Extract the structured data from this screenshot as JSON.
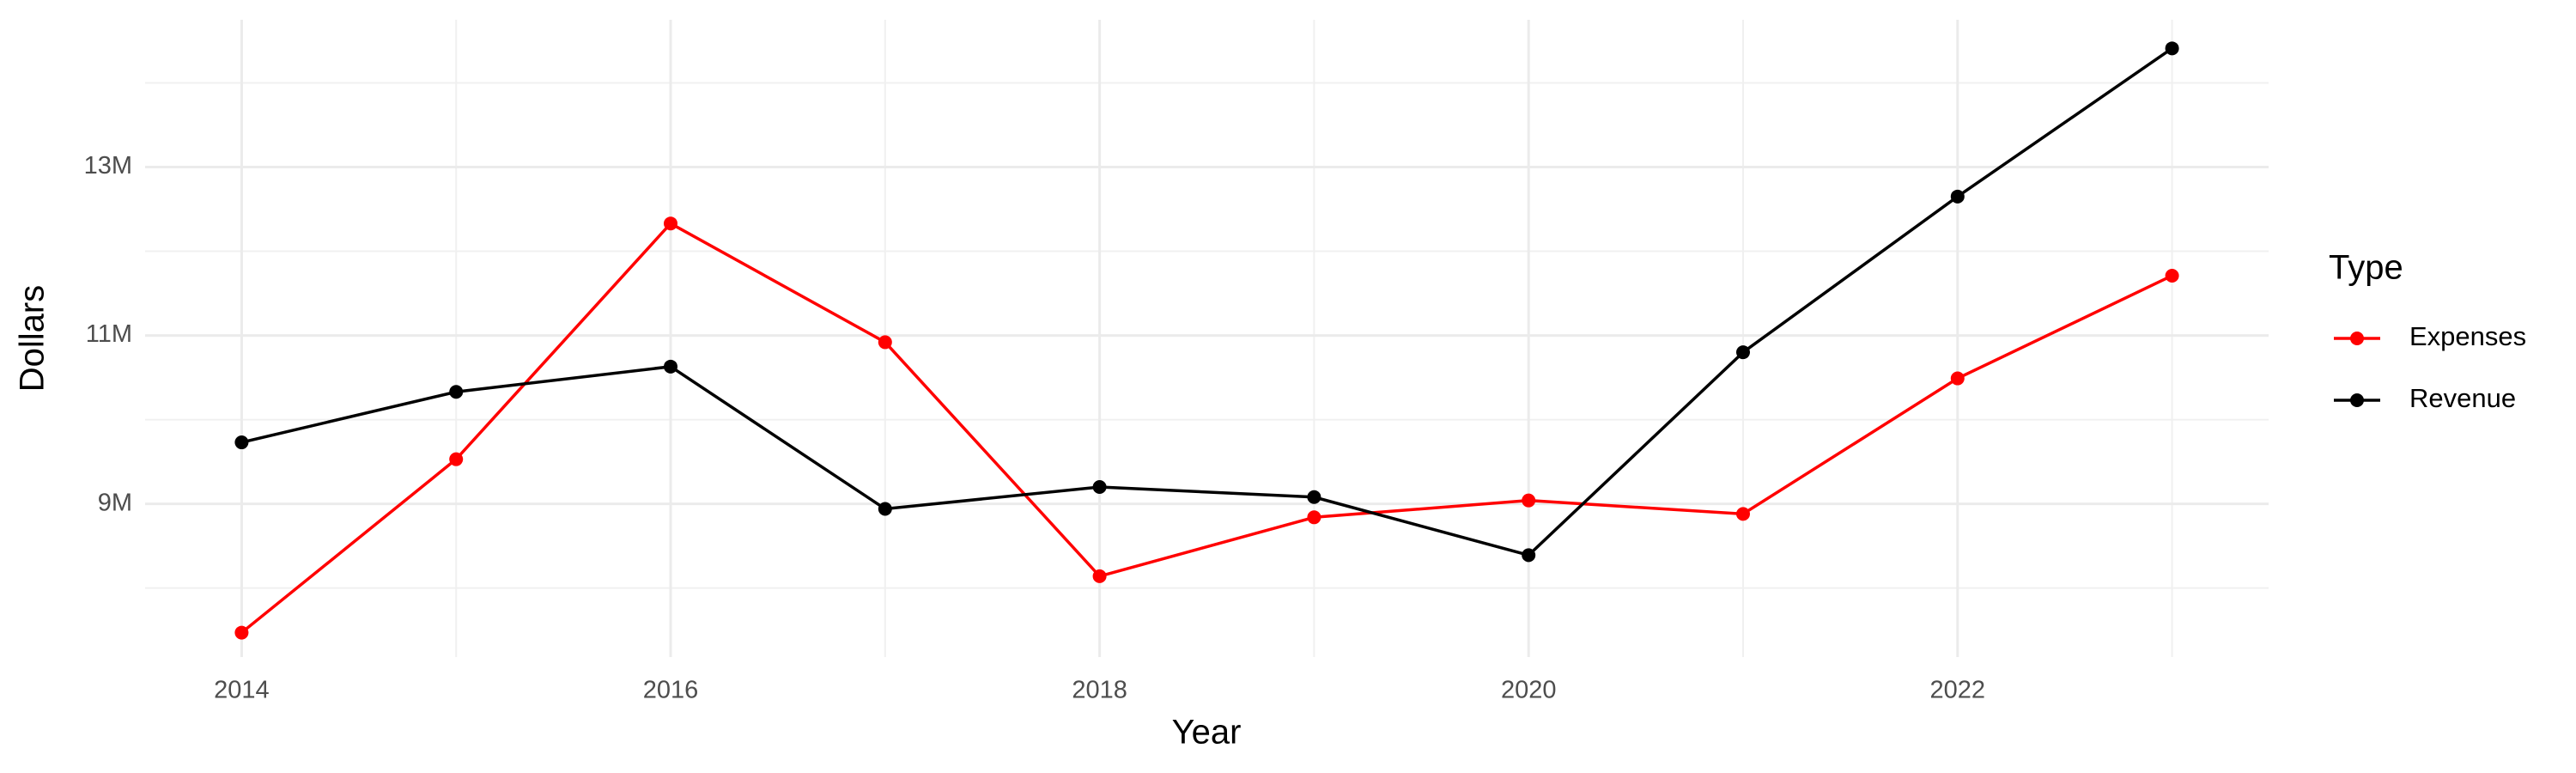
{
  "chart_data": {
    "type": "line",
    "x_label": "Year",
    "y_label": "Dollars",
    "legend_title": "Type",
    "x": [
      2014,
      2015,
      2016,
      2017,
      2018,
      2019,
      2020,
      2021,
      2022,
      2023
    ],
    "series": [
      {
        "name": "Expenses",
        "color": "#ff0000",
        "values": [
          7470000,
          9530000,
          12330000,
          10920000,
          8140000,
          8840000,
          9040000,
          8880000,
          10490000,
          11710000
        ]
      },
      {
        "name": "Revenue",
        "color": "#000000",
        "values": [
          9730000,
          10330000,
          10630000,
          8940000,
          9200000,
          9080000,
          8390000,
          10800000,
          12650000,
          14410000
        ]
      }
    ],
    "xlim": [
      2013.55,
      2023.45
    ],
    "xticks": [
      2014,
      2016,
      2018,
      2020,
      2022
    ],
    "ylim": [
      7180000,
      14750000
    ],
    "yticks": [
      {
        "value": 9000000,
        "label": "9M"
      },
      {
        "value": 11000000,
        "label": "11M"
      },
      {
        "value": 13000000,
        "label": "13M"
      }
    ],
    "grid": true,
    "legend": "right"
  }
}
